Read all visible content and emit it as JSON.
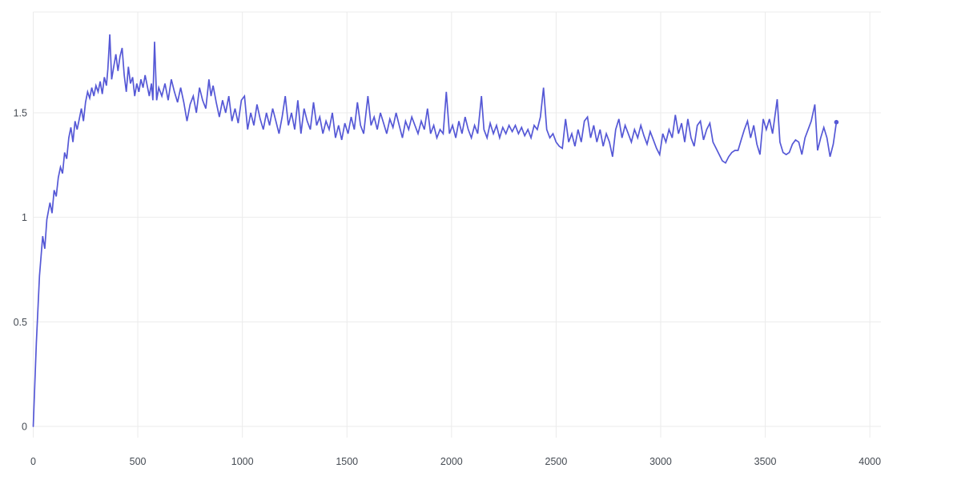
{
  "chart_data": {
    "type": "line",
    "title": "",
    "xlabel": "",
    "ylabel": "",
    "grid": true,
    "legend": "none",
    "x_range": [
      0,
      4053
    ],
    "y_range": [
      0,
      1.982
    ],
    "x_ticks": [
      0,
      500,
      1000,
      1500,
      2000,
      2500,
      3000,
      3500,
      4000
    ],
    "x_tick_labels": [
      "0",
      "500",
      "1000",
      "1500",
      "2000",
      "2500",
      "3000",
      "3500",
      "4000"
    ],
    "y_ticks": [
      0,
      0.5,
      1,
      1.5
    ],
    "y_tick_labels": [
      "0",
      "0.5",
      "1",
      "1.5"
    ],
    "colors": {
      "line": "#5558d6",
      "grid": "#ebebeb",
      "tick_label": "#444a52",
      "background": "#ffffff"
    },
    "end_marker": true,
    "series": [
      {
        "points": [
          [
            0,
            0
          ],
          [
            15,
            0.4
          ],
          [
            30,
            0.72
          ],
          [
            45,
            0.91
          ],
          [
            55,
            0.85
          ],
          [
            65,
            0.99
          ],
          [
            80,
            1.07
          ],
          [
            90,
            1.02
          ],
          [
            100,
            1.13
          ],
          [
            110,
            1.1
          ],
          [
            120,
            1.19
          ],
          [
            130,
            1.24
          ],
          [
            140,
            1.21
          ],
          [
            150,
            1.31
          ],
          [
            160,
            1.28
          ],
          [
            170,
            1.38
          ],
          [
            180,
            1.43
          ],
          [
            190,
            1.36
          ],
          [
            200,
            1.46
          ],
          [
            210,
            1.42
          ],
          [
            220,
            1.47
          ],
          [
            230,
            1.52
          ],
          [
            240,
            1.46
          ],
          [
            250,
            1.55
          ],
          [
            260,
            1.6
          ],
          [
            270,
            1.57
          ],
          [
            280,
            1.62
          ],
          [
            290,
            1.58
          ],
          [
            300,
            1.63
          ],
          [
            310,
            1.6
          ],
          [
            320,
            1.65
          ],
          [
            330,
            1.59
          ],
          [
            340,
            1.67
          ],
          [
            350,
            1.63
          ],
          [
            357,
            1.71
          ],
          [
            366,
            1.875
          ],
          [
            375,
            1.66
          ],
          [
            385,
            1.72
          ],
          [
            395,
            1.78
          ],
          [
            405,
            1.7
          ],
          [
            415,
            1.77
          ],
          [
            425,
            1.81
          ],
          [
            435,
            1.68
          ],
          [
            445,
            1.6
          ],
          [
            455,
            1.72
          ],
          [
            465,
            1.64
          ],
          [
            475,
            1.67
          ],
          [
            485,
            1.58
          ],
          [
            495,
            1.64
          ],
          [
            505,
            1.6
          ],
          [
            515,
            1.66
          ],
          [
            525,
            1.62
          ],
          [
            535,
            1.68
          ],
          [
            545,
            1.63
          ],
          [
            555,
            1.58
          ],
          [
            565,
            1.64
          ],
          [
            572,
            1.56
          ],
          [
            580,
            1.84
          ],
          [
            590,
            1.56
          ],
          [
            600,
            1.62
          ],
          [
            615,
            1.58
          ],
          [
            630,
            1.64
          ],
          [
            645,
            1.56
          ],
          [
            660,
            1.66
          ],
          [
            675,
            1.6
          ],
          [
            690,
            1.55
          ],
          [
            705,
            1.62
          ],
          [
            720,
            1.55
          ],
          [
            735,
            1.46
          ],
          [
            750,
            1.54
          ],
          [
            765,
            1.58
          ],
          [
            780,
            1.5
          ],
          [
            795,
            1.62
          ],
          [
            810,
            1.56
          ],
          [
            825,
            1.52
          ],
          [
            840,
            1.66
          ],
          [
            850,
            1.58
          ],
          [
            860,
            1.63
          ],
          [
            875,
            1.55
          ],
          [
            890,
            1.48
          ],
          [
            905,
            1.56
          ],
          [
            920,
            1.5
          ],
          [
            935,
            1.58
          ],
          [
            950,
            1.46
          ],
          [
            965,
            1.52
          ],
          [
            980,
            1.45
          ],
          [
            995,
            1.56
          ],
          [
            1010,
            1.58
          ],
          [
            1025,
            1.42
          ],
          [
            1040,
            1.5
          ],
          [
            1055,
            1.44
          ],
          [
            1070,
            1.54
          ],
          [
            1085,
            1.47
          ],
          [
            1100,
            1.42
          ],
          [
            1115,
            1.5
          ],
          [
            1130,
            1.44
          ],
          [
            1145,
            1.52
          ],
          [
            1160,
            1.46
          ],
          [
            1175,
            1.4
          ],
          [
            1190,
            1.48
          ],
          [
            1205,
            1.58
          ],
          [
            1220,
            1.44
          ],
          [
            1235,
            1.5
          ],
          [
            1250,
            1.42
          ],
          [
            1265,
            1.56
          ],
          [
            1280,
            1.4
          ],
          [
            1295,
            1.52
          ],
          [
            1310,
            1.46
          ],
          [
            1325,
            1.42
          ],
          [
            1340,
            1.55
          ],
          [
            1355,
            1.44
          ],
          [
            1370,
            1.48
          ],
          [
            1385,
            1.4
          ],
          [
            1400,
            1.46
          ],
          [
            1415,
            1.42
          ],
          [
            1430,
            1.5
          ],
          [
            1445,
            1.38
          ],
          [
            1460,
            1.44
          ],
          [
            1475,
            1.37
          ],
          [
            1490,
            1.45
          ],
          [
            1505,
            1.4
          ],
          [
            1520,
            1.48
          ],
          [
            1535,
            1.42
          ],
          [
            1550,
            1.55
          ],
          [
            1565,
            1.44
          ],
          [
            1580,
            1.4
          ],
          [
            1600,
            1.58
          ],
          [
            1615,
            1.44
          ],
          [
            1630,
            1.48
          ],
          [
            1645,
            1.42
          ],
          [
            1660,
            1.5
          ],
          [
            1675,
            1.45
          ],
          [
            1690,
            1.4
          ],
          [
            1705,
            1.47
          ],
          [
            1720,
            1.43
          ],
          [
            1735,
            1.5
          ],
          [
            1750,
            1.44
          ],
          [
            1765,
            1.38
          ],
          [
            1780,
            1.46
          ],
          [
            1795,
            1.42
          ],
          [
            1810,
            1.48
          ],
          [
            1825,
            1.44
          ],
          [
            1840,
            1.4
          ],
          [
            1855,
            1.46
          ],
          [
            1870,
            1.42
          ],
          [
            1885,
            1.52
          ],
          [
            1900,
            1.4
          ],
          [
            1915,
            1.44
          ],
          [
            1930,
            1.38
          ],
          [
            1945,
            1.42
          ],
          [
            1960,
            1.4
          ],
          [
            1975,
            1.6
          ],
          [
            1990,
            1.4
          ],
          [
            2005,
            1.44
          ],
          [
            2020,
            1.38
          ],
          [
            2035,
            1.46
          ],
          [
            2050,
            1.4
          ],
          [
            2065,
            1.48
          ],
          [
            2080,
            1.42
          ],
          [
            2095,
            1.38
          ],
          [
            2110,
            1.44
          ],
          [
            2125,
            1.4
          ],
          [
            2143,
            1.58
          ],
          [
            2155,
            1.42
          ],
          [
            2170,
            1.38
          ],
          [
            2185,
            1.45
          ],
          [
            2200,
            1.4
          ],
          [
            2215,
            1.44
          ],
          [
            2230,
            1.38
          ],
          [
            2245,
            1.43
          ],
          [
            2260,
            1.4
          ],
          [
            2275,
            1.44
          ],
          [
            2290,
            1.41
          ],
          [
            2305,
            1.44
          ],
          [
            2320,
            1.4
          ],
          [
            2335,
            1.43
          ],
          [
            2350,
            1.39
          ],
          [
            2365,
            1.42
          ],
          [
            2380,
            1.38
          ],
          [
            2395,
            1.44
          ],
          [
            2410,
            1.42
          ],
          [
            2425,
            1.48
          ],
          [
            2440,
            1.62
          ],
          [
            2455,
            1.42
          ],
          [
            2470,
            1.38
          ],
          [
            2485,
            1.4
          ],
          [
            2500,
            1.36
          ],
          [
            2515,
            1.34
          ],
          [
            2530,
            1.33
          ],
          [
            2545,
            1.47
          ],
          [
            2560,
            1.36
          ],
          [
            2575,
            1.4
          ],
          [
            2590,
            1.34
          ],
          [
            2605,
            1.42
          ],
          [
            2620,
            1.36
          ],
          [
            2635,
            1.46
          ],
          [
            2650,
            1.48
          ],
          [
            2665,
            1.38
          ],
          [
            2680,
            1.44
          ],
          [
            2695,
            1.36
          ],
          [
            2710,
            1.42
          ],
          [
            2725,
            1.34
          ],
          [
            2740,
            1.4
          ],
          [
            2755,
            1.36
          ],
          [
            2770,
            1.29
          ],
          [
            2785,
            1.42
          ],
          [
            2800,
            1.47
          ],
          [
            2815,
            1.38
          ],
          [
            2830,
            1.44
          ],
          [
            2845,
            1.4
          ],
          [
            2860,
            1.36
          ],
          [
            2875,
            1.42
          ],
          [
            2890,
            1.38
          ],
          [
            2905,
            1.44
          ],
          [
            2920,
            1.39
          ],
          [
            2935,
            1.35
          ],
          [
            2950,
            1.41
          ],
          [
            2965,
            1.37
          ],
          [
            2980,
            1.33
          ],
          [
            2995,
            1.3
          ],
          [
            3010,
            1.4
          ],
          [
            3025,
            1.36
          ],
          [
            3040,
            1.42
          ],
          [
            3055,
            1.38
          ],
          [
            3070,
            1.49
          ],
          [
            3085,
            1.4
          ],
          [
            3100,
            1.45
          ],
          [
            3115,
            1.36
          ],
          [
            3130,
            1.47
          ],
          [
            3145,
            1.38
          ],
          [
            3160,
            1.34
          ],
          [
            3175,
            1.44
          ],
          [
            3190,
            1.46
          ],
          [
            3205,
            1.37
          ],
          [
            3220,
            1.42
          ],
          [
            3235,
            1.45
          ],
          [
            3250,
            1.36
          ],
          [
            3265,
            1.33
          ],
          [
            3280,
            1.3
          ],
          [
            3295,
            1.27
          ],
          [
            3310,
            1.26
          ],
          [
            3325,
            1.29
          ],
          [
            3340,
            1.31
          ],
          [
            3355,
            1.32
          ],
          [
            3370,
            1.32
          ],
          [
            3385,
            1.37
          ],
          [
            3400,
            1.42
          ],
          [
            3415,
            1.46
          ],
          [
            3430,
            1.38
          ],
          [
            3445,
            1.44
          ],
          [
            3460,
            1.35
          ],
          [
            3475,
            1.3
          ],
          [
            3490,
            1.47
          ],
          [
            3505,
            1.42
          ],
          [
            3520,
            1.47
          ],
          [
            3535,
            1.4
          ],
          [
            3557,
            1.565
          ],
          [
            3570,
            1.36
          ],
          [
            3585,
            1.31
          ],
          [
            3600,
            1.3
          ],
          [
            3615,
            1.31
          ],
          [
            3630,
            1.35
          ],
          [
            3645,
            1.37
          ],
          [
            3660,
            1.36
          ],
          [
            3675,
            1.3
          ],
          [
            3690,
            1.38
          ],
          [
            3705,
            1.42
          ],
          [
            3720,
            1.46
          ],
          [
            3737,
            1.54
          ],
          [
            3750,
            1.32
          ],
          [
            3765,
            1.38
          ],
          [
            3780,
            1.43
          ],
          [
            3795,
            1.38
          ],
          [
            3810,
            1.29
          ],
          [
            3825,
            1.35
          ],
          [
            3840,
            1.455
          ]
        ]
      }
    ]
  }
}
